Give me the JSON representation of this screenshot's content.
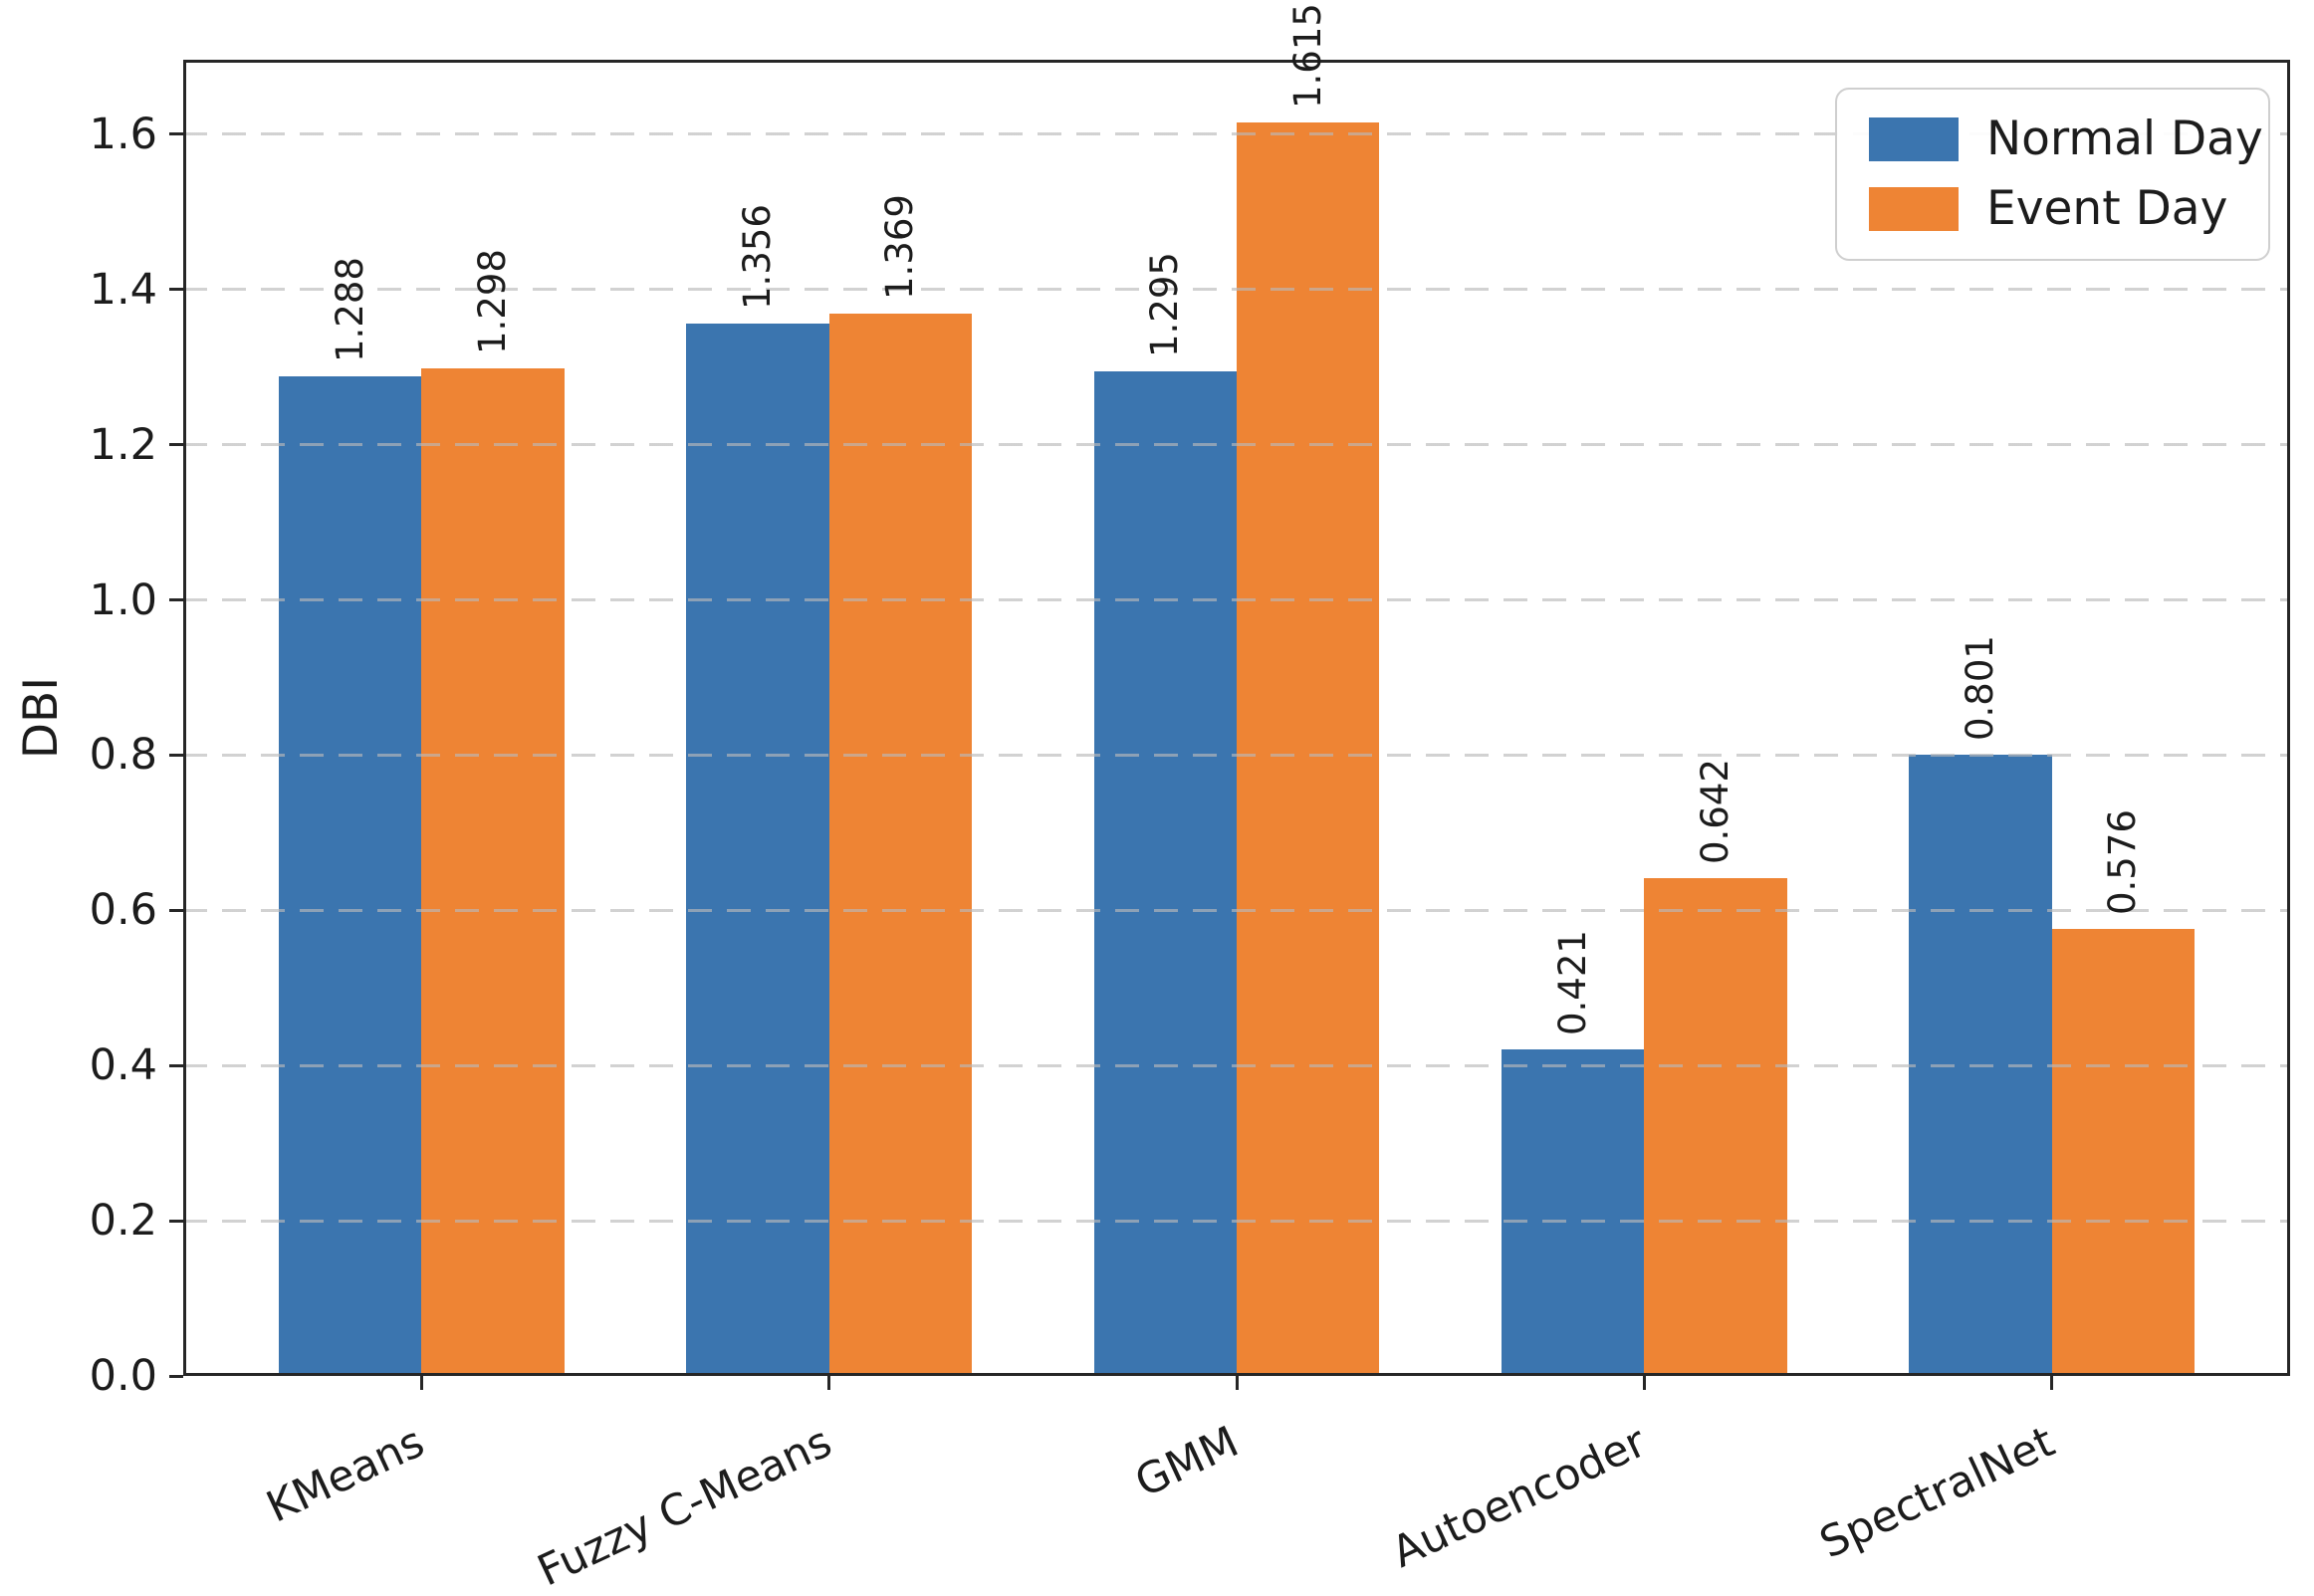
{
  "chart_data": {
    "type": "bar",
    "title": "",
    "xlabel": "",
    "ylabel": "DBI",
    "categories": [
      "KMeans",
      "Fuzzy C-Means",
      "GMM",
      "Autoencoder",
      "SpectralNet"
    ],
    "series": [
      {
        "name": "Normal Day",
        "color": "#3b75af",
        "values": [
          1.288,
          1.356,
          1.295,
          0.421,
          0.801
        ],
        "labels": [
          "1.288",
          "1.356",
          "1.295",
          "0.421",
          "0.801"
        ]
      },
      {
        "name": "Event Day",
        "color": "#ee8434",
        "values": [
          1.298,
          1.369,
          1.615,
          0.642,
          0.576
        ],
        "labels": [
          "1.298",
          "1.369",
          "1.615",
          "0.642",
          "0.576"
        ]
      }
    ],
    "ylim": [
      0,
      1.696
    ],
    "yticks": [
      "0.0",
      "0.2",
      "0.4",
      "0.6",
      "0.8",
      "1.0",
      "1.2",
      "1.4",
      "1.6"
    ],
    "grid": "horizontal-dashed",
    "legend_position": "upper right",
    "bar_value_labels_rotation": 90,
    "xtick_rotation": 25
  },
  "colors": {
    "normal_day": "#3b75af",
    "event_day": "#ee8434",
    "spine": "#262626",
    "grid": "#c8c8c8",
    "text": "#1c1c1c",
    "legend_border": "#cfcfcf"
  }
}
